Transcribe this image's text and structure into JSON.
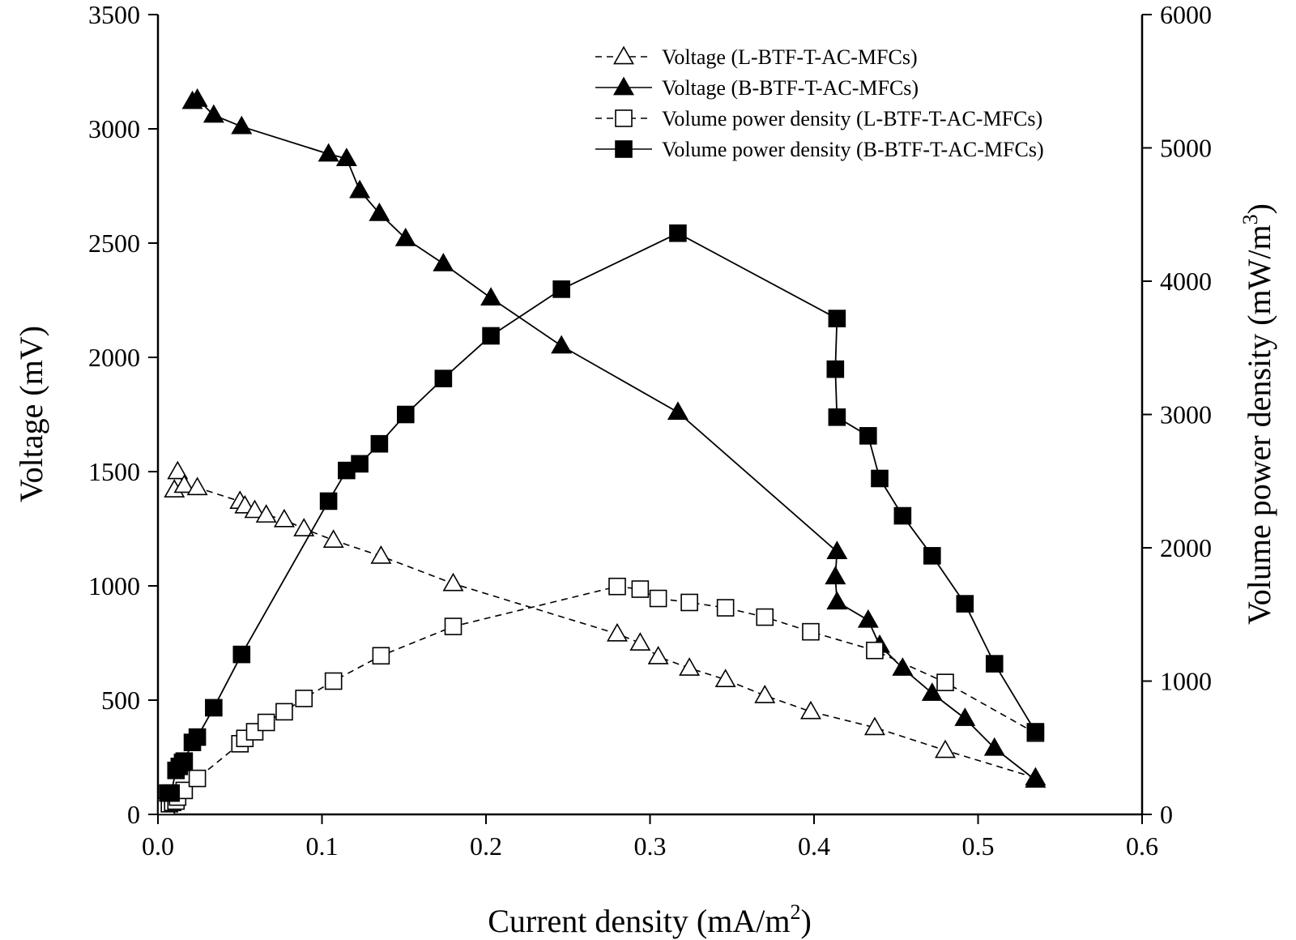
{
  "chart_data": {
    "type": "line",
    "xlabel": "Current density (mA/m",
    "xlabel_sup": "2",
    "xlabel_end": ")",
    "ylabel_left": "Voltage (mV)",
    "ylabel_right": "Volume power density (mW/m",
    "ylabel_right_sup": "3",
    "ylabel_right_end": ")",
    "xlim": [
      0,
      0.6
    ],
    "ylim_left": [
      0,
      3500
    ],
    "ylim_right": [
      0,
      6000
    ],
    "x_ticks": [
      0.0,
      0.1,
      0.2,
      0.3,
      0.4,
      0.5,
      0.6
    ],
    "x_tick_labels": [
      "0.0",
      "0.1",
      "0.2",
      "0.3",
      "0.4",
      "0.5",
      "0.6"
    ],
    "y_left_ticks": [
      0,
      500,
      1000,
      1500,
      2000,
      2500,
      3000,
      3500
    ],
    "y_left_tick_labels": [
      "0",
      "500",
      "1000",
      "1500",
      "2000",
      "2500",
      "3000",
      "3500"
    ],
    "y_right_ticks": [
      0,
      1000,
      2000,
      3000,
      4000,
      5000,
      6000
    ],
    "y_right_tick_labels": [
      "0",
      "1000",
      "2000",
      "3000",
      "4000",
      "5000",
      "6000"
    ],
    "legend_position": "top-right",
    "series": [
      {
        "name": "Voltage (L-BTF-T-AC-MFCs)",
        "axis": "left",
        "marker": "triangle-open",
        "line": "dashed",
        "x": [
          0.01,
          0.012,
          0.016,
          0.024,
          0.05,
          0.053,
          0.059,
          0.066,
          0.077,
          0.089,
          0.107,
          0.136,
          0.18,
          0.28,
          0.294,
          0.305,
          0.324,
          0.346,
          0.37,
          0.398,
          0.437,
          0.48,
          0.535
        ],
        "y": [
          1420,
          1500,
          1440,
          1430,
          1370,
          1350,
          1330,
          1310,
          1290,
          1250,
          1200,
          1130,
          1010,
          790,
          750,
          690,
          640,
          590,
          520,
          450,
          380,
          280,
          160
        ]
      },
      {
        "name": "Voltage (B-BTF-T-AC-MFCs)",
        "axis": "left",
        "marker": "triangle-filled",
        "line": "solid",
        "x": [
          0.021,
          0.024,
          0.034,
          0.051,
          0.104,
          0.115,
          0.123,
          0.135,
          0.151,
          0.174,
          0.203,
          0.246,
          0.317,
          0.414,
          0.413,
          0.414,
          0.433,
          0.44,
          0.454,
          0.472,
          0.492,
          0.51,
          0.535
        ],
        "y": [
          3120,
          3130,
          3060,
          3010,
          2890,
          2870,
          2730,
          2630,
          2520,
          2410,
          2260,
          2050,
          1760,
          1150,
          1040,
          930,
          850,
          740,
          640,
          530,
          420,
          290,
          150
        ]
      },
      {
        "name": "Volume power density (L-BTF-T-AC-MFCs)",
        "axis": "right",
        "marker": "square-open",
        "line": "dashed",
        "x": [
          0.005,
          0.007,
          0.009,
          0.011,
          0.012,
          0.016,
          0.024,
          0.05,
          0.053,
          0.059,
          0.066,
          0.077,
          0.089,
          0.107,
          0.136,
          0.18,
          0.28,
          0.294,
          0.305,
          0.324,
          0.346,
          0.37,
          0.398,
          0.437,
          0.48,
          0.535
        ],
        "y": [
          60,
          80,
          90,
          100,
          130,
          180,
          270,
          530,
          570,
          620,
          690,
          770,
          870,
          1000,
          1190,
          1410,
          1710,
          1690,
          1620,
          1590,
          1550,
          1480,
          1370,
          1230,
          990,
          610
        ]
      },
      {
        "name": "Volume power density (B-BTF-T-AC-MFCs)",
        "axis": "right",
        "marker": "square-filled",
        "line": "solid",
        "x": [
          0.006,
          0.008,
          0.011,
          0.013,
          0.015,
          0.016,
          0.021,
          0.024,
          0.034,
          0.051,
          0.104,
          0.115,
          0.123,
          0.135,
          0.151,
          0.174,
          0.203,
          0.246,
          0.317,
          0.414,
          0.413,
          0.414,
          0.433,
          0.44,
          0.454,
          0.472,
          0.492,
          0.51,
          0.535
        ],
        "y": [
          160,
          160,
          330,
          360,
          390,
          400,
          540,
          580,
          800,
          1200,
          2350,
          2580,
          2630,
          2780,
          3000,
          3270,
          3590,
          3940,
          4360,
          3720,
          3340,
          2980,
          2840,
          2520,
          2240,
          1940,
          1580,
          1130,
          620
        ]
      }
    ]
  }
}
